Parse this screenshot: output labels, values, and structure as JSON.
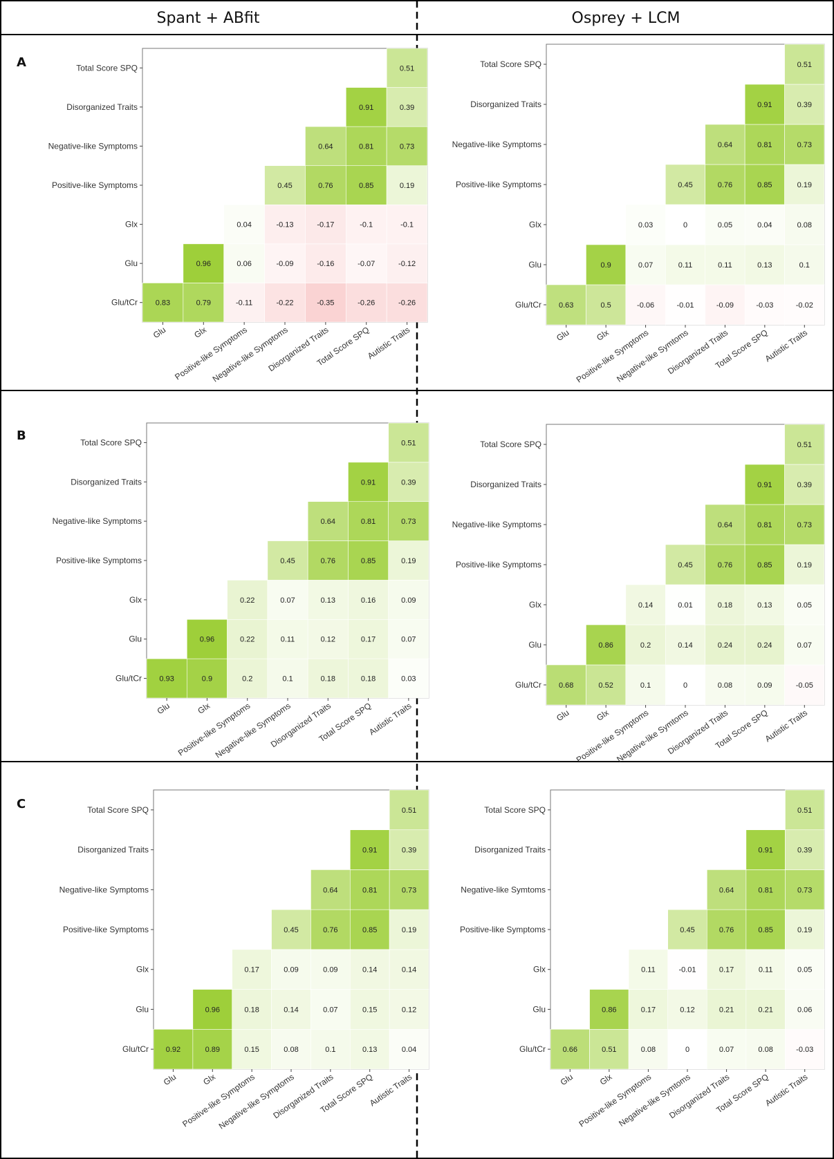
{
  "columns": [
    "Spant + ABfit",
    "Osprey + LCM"
  ],
  "rows": [
    "A",
    "B",
    "C"
  ],
  "chart_data": [
    {
      "type": "heatmap",
      "row": "A",
      "col": 0,
      "ylabels": [
        "Glu/tCr",
        "Glu",
        "Glx",
        "Positive-like Symptoms",
        "Negative-like Symptoms",
        "Disorganized Traits",
        "Total Score SPQ"
      ],
      "xlabels": [
        "Glu",
        "Glx",
        "Positive-like Symptoms",
        "Negative-like Symptoms",
        "Disorganized Traits",
        "Total Score SPQ",
        "Autistic Traits"
      ],
      "values": [
        [
          0.83,
          0.79,
          -0.11,
          -0.22,
          -0.35,
          -0.26,
          -0.26
        ],
        [
          null,
          0.96,
          0.06,
          -0.09,
          -0.16,
          -0.07,
          -0.12
        ],
        [
          null,
          null,
          0.04,
          -0.13,
          -0.17,
          -0.1,
          -0.1
        ],
        [
          null,
          null,
          null,
          0.45,
          0.76,
          0.85,
          0.19
        ],
        [
          null,
          null,
          null,
          null,
          0.64,
          0.81,
          0.73
        ],
        [
          null,
          null,
          null,
          null,
          null,
          0.91,
          0.39
        ],
        [
          null,
          null,
          null,
          null,
          null,
          null,
          0.51
        ]
      ]
    },
    {
      "type": "heatmap",
      "row": "A",
      "col": 1,
      "ylabels": [
        "Glu/tCr",
        "Glu",
        "Glx",
        "Positive-like Symptoms",
        "Negative-like Symptoms",
        "Disorganized Traits",
        "Total Score SPQ"
      ],
      "xlabels": [
        "Glu",
        "Glx",
        "Positive-like Symptoms",
        "Negative-like Symtoms",
        "Disorganized Traits",
        "Total Score SPQ",
        "Autistic Traits"
      ],
      "values": [
        [
          0.63,
          0.5,
          -0.06,
          -0.01,
          -0.09,
          -0.03,
          -0.02
        ],
        [
          null,
          0.9,
          0.07,
          0.11,
          0.11,
          0.13,
          0.1
        ],
        [
          null,
          null,
          0.03,
          0,
          0.05,
          0.04,
          0.08
        ],
        [
          null,
          null,
          null,
          0.45,
          0.76,
          0.85,
          0.19
        ],
        [
          null,
          null,
          null,
          null,
          0.64,
          0.81,
          0.73
        ],
        [
          null,
          null,
          null,
          null,
          null,
          0.91,
          0.39
        ],
        [
          null,
          null,
          null,
          null,
          null,
          null,
          0.51
        ]
      ]
    },
    {
      "type": "heatmap",
      "row": "B",
      "col": 0,
      "ylabels": [
        "Glu/tCr",
        "Glu",
        "Glx",
        "Positive-like Symptoms",
        "Negative-like Symptoms",
        "Disorganized Traits",
        "Total Score SPQ"
      ],
      "xlabels": [
        "Glu",
        "Glx",
        "Positive-like Symptoms",
        "Negative-like Symptoms",
        "Disorganized Traits",
        "Total Score SPQ",
        "Autistic Traits"
      ],
      "values": [
        [
          0.93,
          0.9,
          0.2,
          0.1,
          0.18,
          0.18,
          0.03
        ],
        [
          null,
          0.96,
          0.22,
          0.11,
          0.12,
          0.17,
          0.07
        ],
        [
          null,
          null,
          0.22,
          0.07,
          0.13,
          0.16,
          0.09
        ],
        [
          null,
          null,
          null,
          0.45,
          0.76,
          0.85,
          0.19
        ],
        [
          null,
          null,
          null,
          null,
          0.64,
          0.81,
          0.73
        ],
        [
          null,
          null,
          null,
          null,
          null,
          0.91,
          0.39
        ],
        [
          null,
          null,
          null,
          null,
          null,
          null,
          0.51
        ]
      ]
    },
    {
      "type": "heatmap",
      "row": "B",
      "col": 1,
      "ylabels": [
        "Glu/tCr",
        "Glu",
        "Glx",
        "Positive-like Symptoms",
        "Negative-like Symptoms",
        "Disorganized Traits",
        "Total Score SPQ"
      ],
      "xlabels": [
        "Glu",
        "Glx",
        "Positive-like Symptoms",
        "Negative-like Symtoms",
        "Disorganized Traits",
        "Total Score SPQ",
        "Autistic Traits"
      ],
      "values": [
        [
          0.68,
          0.52,
          0.1,
          0,
          0.08,
          0.09,
          -0.05
        ],
        [
          null,
          0.86,
          0.2,
          0.14,
          0.24,
          0.24,
          0.07
        ],
        [
          null,
          null,
          0.14,
          0.01,
          0.18,
          0.13,
          0.05
        ],
        [
          null,
          null,
          null,
          0.45,
          0.76,
          0.85,
          0.19
        ],
        [
          null,
          null,
          null,
          null,
          0.64,
          0.81,
          0.73
        ],
        [
          null,
          null,
          null,
          null,
          null,
          0.91,
          0.39
        ],
        [
          null,
          null,
          null,
          null,
          null,
          null,
          0.51
        ]
      ]
    },
    {
      "type": "heatmap",
      "row": "C",
      "col": 0,
      "ylabels": [
        "Glu/tCr",
        "Glu",
        "Glx",
        "Positive-like Symptoms",
        "Negative-like Symptoms",
        "Disorganized Traits",
        "Total Score SPQ"
      ],
      "xlabels": [
        "Glu",
        "Glx",
        "Positive-like Symptoms",
        "Negative-like Symptoms",
        "Disorganized Traits",
        "Total Score SPQ",
        "Autistic Traits"
      ],
      "values": [
        [
          0.92,
          0.89,
          0.15,
          0.08,
          0.1,
          0.13,
          0.04
        ],
        [
          null,
          0.96,
          0.18,
          0.14,
          0.07,
          0.15,
          0.12
        ],
        [
          null,
          null,
          0.17,
          0.09,
          0.09,
          0.14,
          0.14
        ],
        [
          null,
          null,
          null,
          0.45,
          0.76,
          0.85,
          0.19
        ],
        [
          null,
          null,
          null,
          null,
          0.64,
          0.81,
          0.73
        ],
        [
          null,
          null,
          null,
          null,
          null,
          0.91,
          0.39
        ],
        [
          null,
          null,
          null,
          null,
          null,
          null,
          0.51
        ]
      ]
    },
    {
      "type": "heatmap",
      "row": "C",
      "col": 1,
      "ylabels": [
        "Glu/tCr",
        "Glu",
        "Glx",
        "Positive-like Symptoms",
        "Negative-like Symtoms",
        "Disorganized Traits",
        "Total Score SPQ"
      ],
      "xlabels": [
        "Glu",
        "Glx",
        "Positive-like Symptoms",
        "Negative-like Symtoms",
        "Disorganized Traits",
        "Total Score SPQ",
        "Autistic Traits"
      ],
      "values": [
        [
          0.66,
          0.51,
          0.08,
          0,
          0.07,
          0.08,
          -0.03
        ],
        [
          null,
          0.86,
          0.17,
          0.12,
          0.21,
          0.21,
          0.06
        ],
        [
          null,
          null,
          0.11,
          -0.01,
          0.17,
          0.11,
          0.05
        ],
        [
          null,
          null,
          null,
          0.45,
          0.76,
          0.85,
          0.19
        ],
        [
          null,
          null,
          null,
          null,
          0.64,
          0.81,
          0.73
        ],
        [
          null,
          null,
          null,
          null,
          null,
          0.91,
          0.39
        ],
        [
          null,
          null,
          null,
          null,
          null,
          null,
          0.51
        ]
      ]
    }
  ],
  "colors": {
    "positive": "#9acd32",
    "negative": "#f08080",
    "zero": "#ffffff",
    "frame": "#000000",
    "panel_border": "#777777",
    "label": "#333333"
  }
}
